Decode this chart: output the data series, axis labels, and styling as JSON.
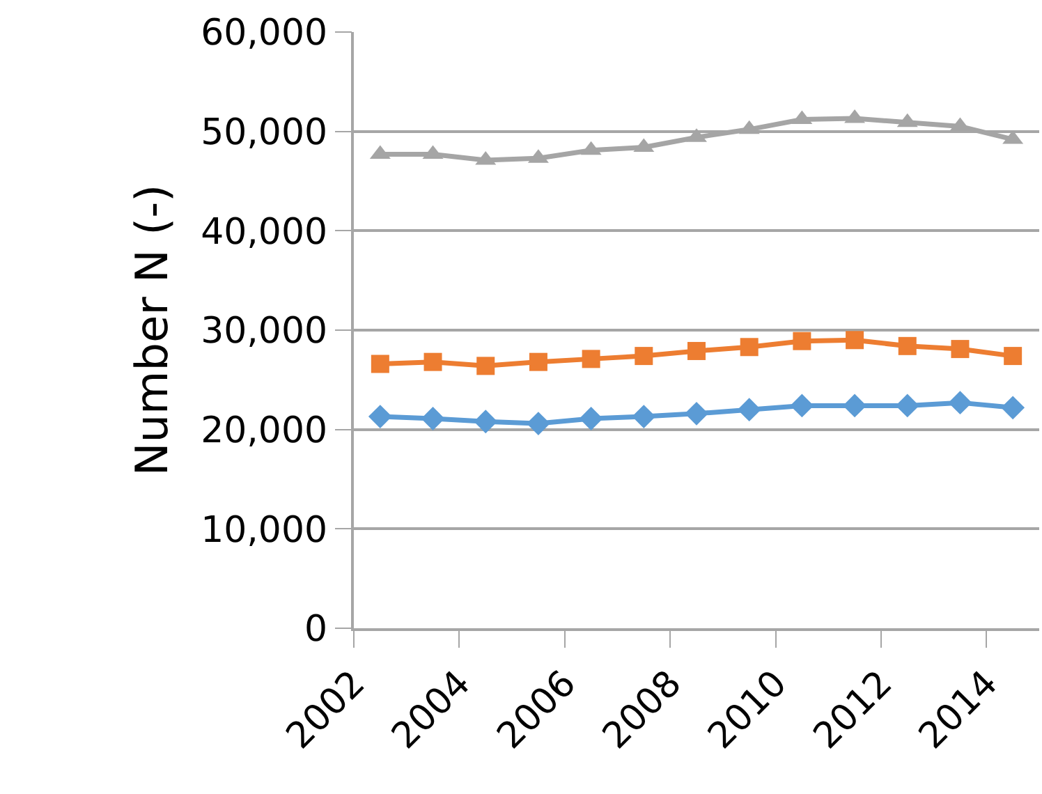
{
  "chart_data": {
    "type": "line",
    "ylabel": "Number N (-)",
    "x": [
      2002.5,
      2003.5,
      2004.5,
      2005.5,
      2006.5,
      2007.5,
      2008.5,
      2009.5,
      2010.5,
      2011.5,
      2012.5,
      2013.5,
      2014.5
    ],
    "series": [
      {
        "color": "#5b9bd5",
        "marker": "diamond",
        "values": [
          21300,
          21100,
          20800,
          20600,
          21100,
          21300,
          21600,
          22000,
          22400,
          22400,
          22400,
          22700,
          22200
        ]
      },
      {
        "color": "#ed7d31",
        "marker": "square",
        "values": [
          26600,
          26800,
          26400,
          26800,
          27100,
          27400,
          27900,
          28300,
          28900,
          29000,
          28400,
          28100,
          27400
        ]
      },
      {
        "color": "#a5a5a5",
        "marker": "triangle",
        "values": [
          47700,
          47700,
          47100,
          47300,
          48100,
          48400,
          49400,
          50200,
          51200,
          51300,
          50900,
          50500,
          49200
        ]
      }
    ],
    "xlim": [
      2002,
      2015
    ],
    "xticks": [
      2002,
      2004,
      2006,
      2008,
      2010,
      2012,
      2014
    ],
    "ylim": [
      0,
      60000
    ],
    "yticks": [
      {
        "value": 0,
        "label": "0"
      },
      {
        "value": 10000,
        "label": "10,000"
      },
      {
        "value": 20000,
        "label": "20,000"
      },
      {
        "value": 30000,
        "label": "30,000"
      },
      {
        "value": 40000,
        "label": "40,000"
      },
      {
        "value": 50000,
        "label": "50,000"
      },
      {
        "value": 60000,
        "label": "60,000"
      }
    ],
    "grid": "y",
    "line_style": "solid"
  }
}
